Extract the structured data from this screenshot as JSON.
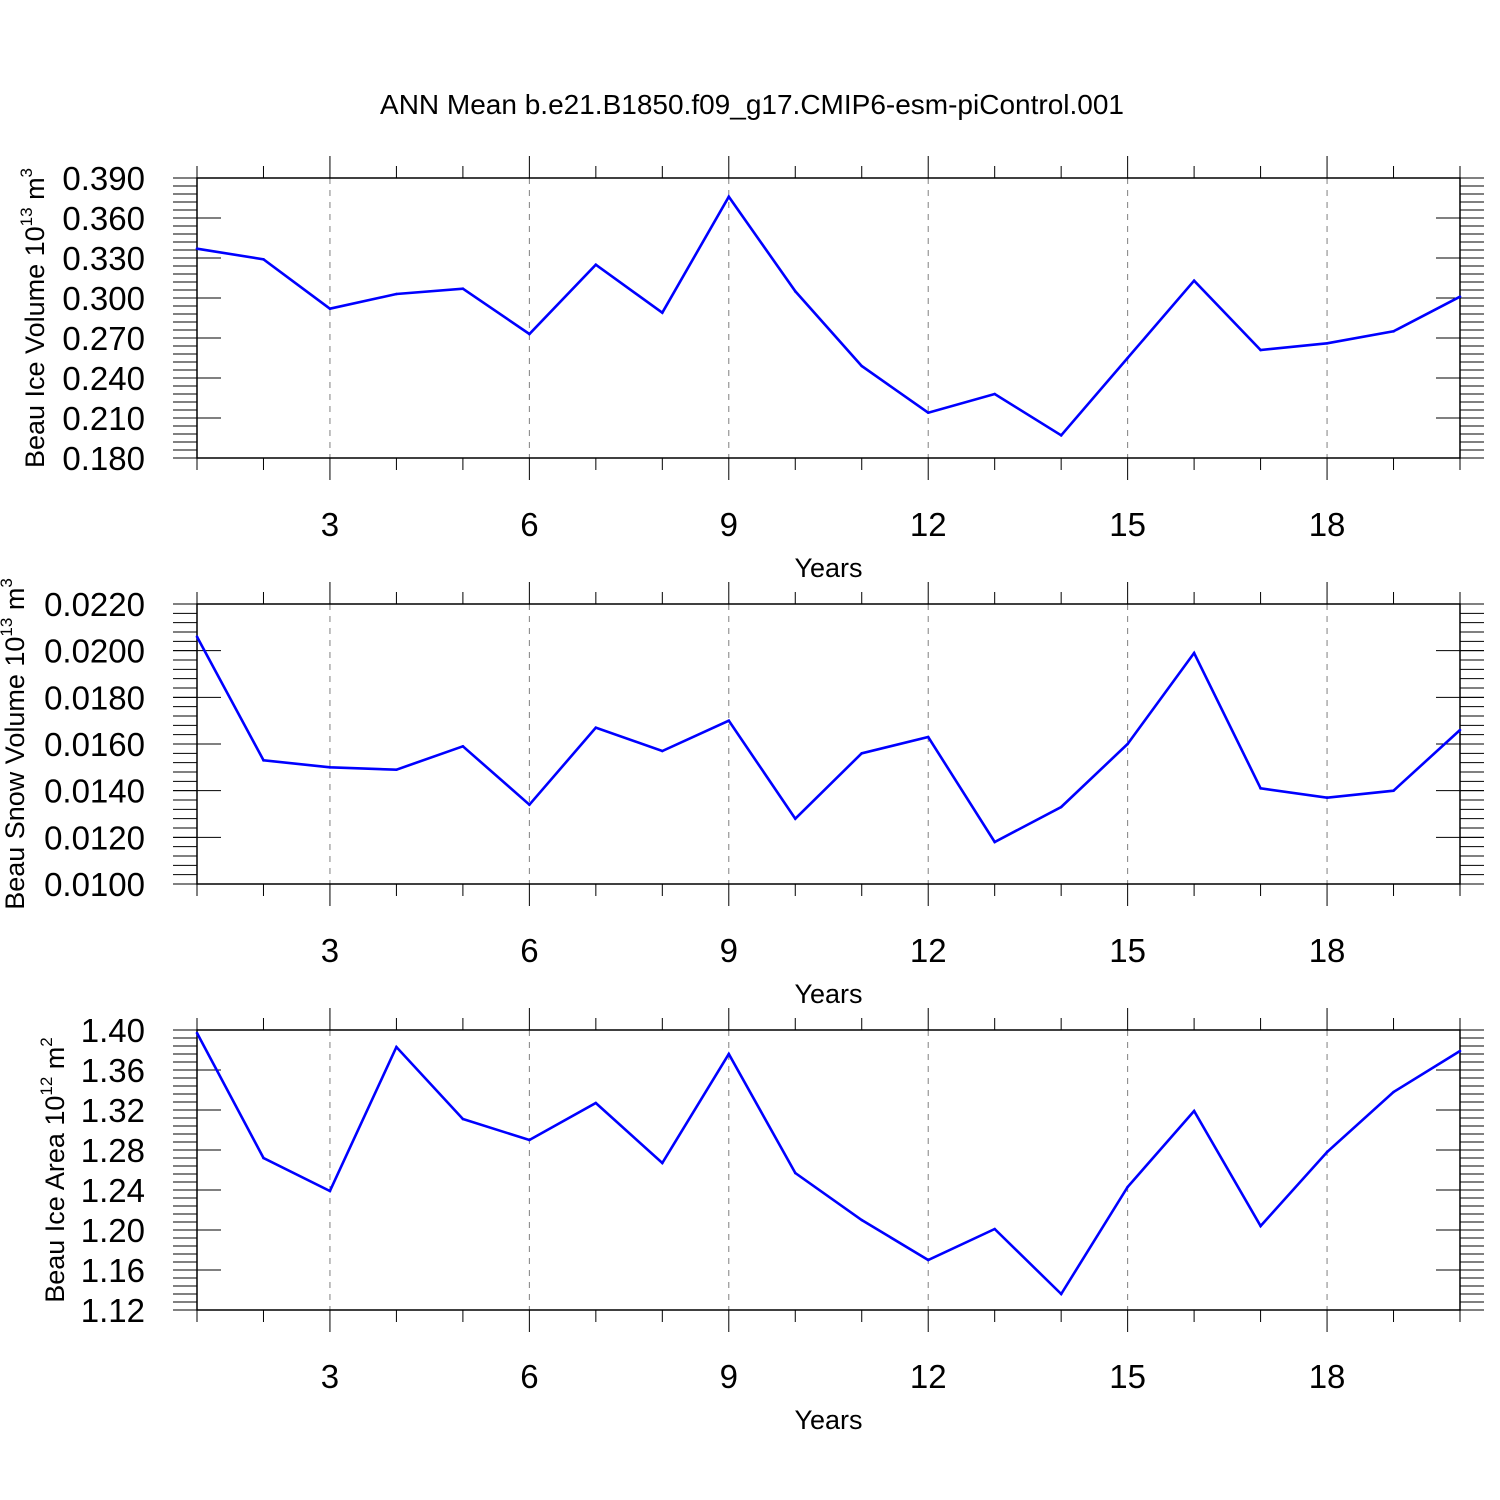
{
  "title": "ANN Mean b.e21.B1850.f09_g17.CMIP6-esm-piControl.001",
  "colors": {
    "line": "#0000ff",
    "axis": "#000000",
    "grid": "#808080",
    "background": "#ffffff"
  },
  "chart_data": [
    {
      "type": "line",
      "title": "",
      "xlabel": "Years",
      "ylabel": "Beau Ice Volume 10",
      "ylabel_exp": "13",
      "ylabel_unit": " m",
      "ylabel_unit_exp": "3",
      "xlim": [
        1,
        20
      ],
      "ylim": [
        0.18,
        0.39
      ],
      "xticks": [
        3,
        6,
        9,
        12,
        15,
        18
      ],
      "xtick_labels": [
        "3",
        "6",
        "9",
        "12",
        "15",
        "18"
      ],
      "yticks": [
        0.18,
        0.21,
        0.24,
        0.27,
        0.3,
        0.33,
        0.36,
        0.39
      ],
      "ytick_labels": [
        "0.180",
        "0.210",
        "0.240",
        "0.270",
        "0.300",
        "0.330",
        "0.360",
        "0.390"
      ],
      "y_minor_step": 0.006,
      "grid": "vertical-dashed",
      "x": [
        1,
        2,
        3,
        4,
        5,
        6,
        7,
        8,
        9,
        10,
        11,
        12,
        13,
        14,
        15,
        16,
        17,
        18,
        19,
        20
      ],
      "series": [
        {
          "values": [
            0.337,
            0.329,
            0.292,
            0.303,
            0.307,
            0.273,
            0.325,
            0.289,
            0.376,
            0.305,
            0.249,
            0.214,
            0.228,
            0.197,
            0.255,
            0.313,
            0.261,
            0.266,
            0.275,
            0.301
          ]
        }
      ]
    },
    {
      "type": "line",
      "title": "",
      "xlabel": "Years",
      "ylabel": "Beau Snow Volume 10",
      "ylabel_exp": "13",
      "ylabel_unit": " m",
      "ylabel_unit_exp": "3",
      "xlim": [
        1,
        20
      ],
      "ylim": [
        0.01,
        0.022
      ],
      "xticks": [
        3,
        6,
        9,
        12,
        15,
        18
      ],
      "xtick_labels": [
        "3",
        "6",
        "9",
        "12",
        "15",
        "18"
      ],
      "yticks": [
        0.01,
        0.012,
        0.014,
        0.016,
        0.018,
        0.02,
        0.022
      ],
      "ytick_labels": [
        "0.0100",
        "0.0120",
        "0.0140",
        "0.0160",
        "0.0180",
        "0.0200",
        "0.0220"
      ],
      "y_minor_step": 0.0004,
      "grid": "vertical-dashed",
      "x": [
        1,
        2,
        3,
        4,
        5,
        6,
        7,
        8,
        9,
        10,
        11,
        12,
        13,
        14,
        15,
        16,
        17,
        18,
        19,
        20
      ],
      "series": [
        {
          "values": [
            0.0206,
            0.0153,
            0.015,
            0.0149,
            0.0159,
            0.0134,
            0.0167,
            0.0157,
            0.017,
            0.0128,
            0.0156,
            0.0163,
            0.0118,
            0.0133,
            0.016,
            0.0199,
            0.0141,
            0.0137,
            0.014,
            0.0166
          ]
        }
      ]
    },
    {
      "type": "line",
      "title": "",
      "xlabel": "Years",
      "ylabel": "Beau Ice Area 10",
      "ylabel_exp": "12",
      "ylabel_unit": " m",
      "ylabel_unit_exp": "2",
      "xlim": [
        1,
        20
      ],
      "ylim": [
        1.12,
        1.4
      ],
      "xticks": [
        3,
        6,
        9,
        12,
        15,
        18
      ],
      "xtick_labels": [
        "3",
        "6",
        "9",
        "12",
        "15",
        "18"
      ],
      "yticks": [
        1.12,
        1.16,
        1.2,
        1.24,
        1.28,
        1.32,
        1.36,
        1.4
      ],
      "ytick_labels": [
        "1.12",
        "1.16",
        "1.20",
        "1.24",
        "1.28",
        "1.32",
        "1.36",
        "1.40"
      ],
      "y_minor_step": 0.008,
      "grid": "vertical-dashed",
      "x": [
        1,
        2,
        3,
        4,
        5,
        6,
        7,
        8,
        9,
        10,
        11,
        12,
        13,
        14,
        15,
        16,
        17,
        18,
        19,
        20
      ],
      "series": [
        {
          "values": [
            1.397,
            1.272,
            1.239,
            1.383,
            1.311,
            1.29,
            1.327,
            1.267,
            1.376,
            1.257,
            1.21,
            1.17,
            1.201,
            1.136,
            1.243,
            1.319,
            1.204,
            1.278,
            1.338,
            1.379
          ]
        }
      ]
    }
  ]
}
